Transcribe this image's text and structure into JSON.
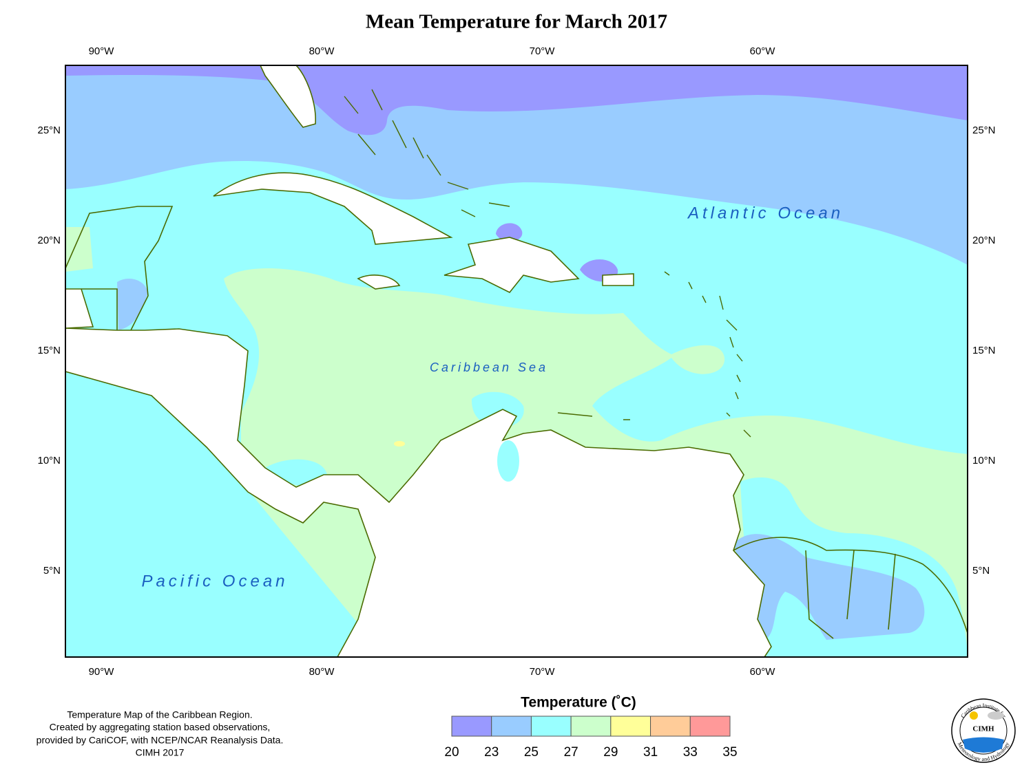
{
  "title": "Mean Temperature for March 2017",
  "map": {
    "lon_range": [
      -91.625,
      -50.69
    ],
    "lat_range": [
      1.09,
      27.97
    ],
    "lon_ticks": [
      {
        "value": -90,
        "label": "90°W"
      },
      {
        "value": -80,
        "label": "80°W"
      },
      {
        "value": -70,
        "label": "70°W"
      },
      {
        "value": -60,
        "label": "60°W"
      }
    ],
    "lat_ticks": [
      {
        "value": 25,
        "label": "25°N"
      },
      {
        "value": 20,
        "label": "20°N"
      },
      {
        "value": 15,
        "label": "15°N"
      },
      {
        "value": 10,
        "label": "10°N"
      },
      {
        "value": 5,
        "label": "5°N"
      }
    ],
    "labels": [
      "Atlantic Ocean",
      "Caribbean Sea",
      "Pacific Ocean"
    ]
  },
  "legend": {
    "title": "Temperature (˚C)",
    "breaks": [
      20,
      23,
      25,
      27,
      29,
      31,
      33,
      35
    ],
    "colors": [
      "#9999ff",
      "#99ccff",
      "#99ffff",
      "#ccffcc",
      "#ffff99",
      "#ffcc99",
      "#ff9999"
    ]
  },
  "caption": [
    "Temperature Map of the Caribbean Region.",
    "Created by aggregating station based observations,",
    "provided by CariCOF, with NCEP/NCAR Reanalysis Data.",
    "CIMH 2017"
  ],
  "logo": {
    "name": "CIMH",
    "top": "Caribbean Institute for",
    "bottom": "Meteorology and Hydrology"
  }
}
